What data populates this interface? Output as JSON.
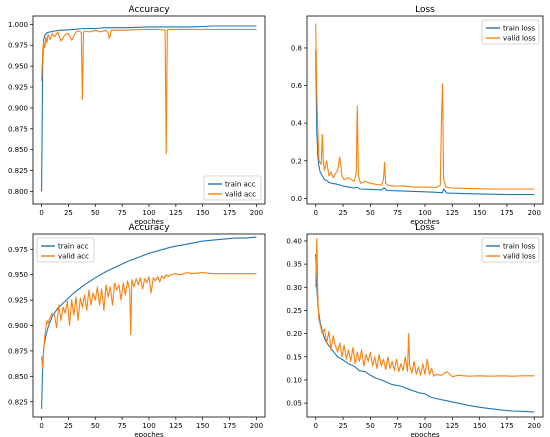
{
  "colors": {
    "train": "#1f77b4",
    "valid": "#ff7f0e"
  },
  "chart_data": [
    {
      "type": "line",
      "title": "Accuracy",
      "xlabel": "epoches",
      "ylabel": "",
      "xlim": [
        -8,
        208
      ],
      "ylim": [
        0.785,
        1.01
      ],
      "grid": false,
      "legend": "bottom-right",
      "xticks": [
        0,
        25,
        50,
        75,
        100,
        125,
        150,
        175,
        200
      ],
      "yticks": [
        0.8,
        0.825,
        0.85,
        0.875,
        0.9,
        0.925,
        0.95,
        0.975,
        1.0
      ],
      "ytick_labels": [
        "0.800",
        "0.825",
        "0.850",
        "0.875",
        "0.900",
        "0.925",
        "0.950",
        "0.975",
        "1.000"
      ],
      "series": [
        {
          "name": "train acc",
          "color": "#1f77b4",
          "x": [
            0,
            1,
            2,
            3,
            5,
            8,
            12,
            17,
            20,
            30,
            40,
            50,
            60,
            70,
            80,
            100,
            120,
            140,
            160,
            180,
            200
          ],
          "values": [
            0.8,
            0.955,
            0.982,
            0.987,
            0.99,
            0.991,
            0.992,
            0.993,
            0.993,
            0.994,
            0.995,
            0.995,
            0.996,
            0.996,
            0.996,
            0.997,
            0.997,
            0.997,
            0.998,
            0.998,
            0.998
          ]
        },
        {
          "name": "valid acc",
          "color": "#ff7f0e",
          "x": [
            0,
            1,
            2,
            3,
            4,
            5,
            6,
            8,
            10,
            12,
            15,
            18,
            22,
            25,
            28,
            32,
            35,
            37,
            38,
            39,
            40,
            45,
            50,
            55,
            60,
            62,
            63,
            65,
            70,
            80,
            90,
            100,
            110,
            115,
            116,
            117,
            118,
            120,
            140,
            160,
            180,
            200
          ],
          "values": [
            0.932,
            0.968,
            0.979,
            0.972,
            0.985,
            0.978,
            0.988,
            0.982,
            0.989,
            0.985,
            0.991,
            0.98,
            0.988,
            0.989,
            0.981,
            0.991,
            0.992,
            0.99,
            0.91,
            0.99,
            0.992,
            0.991,
            0.993,
            0.991,
            0.993,
            0.99,
            0.983,
            0.993,
            0.993,
            0.993,
            0.994,
            0.994,
            0.994,
            0.993,
            0.845,
            0.993,
            0.994,
            0.994,
            0.994,
            0.994,
            0.994,
            0.994
          ]
        }
      ]
    },
    {
      "type": "line",
      "title": "Loss",
      "xlabel": "epoches",
      "ylabel": "",
      "xlim": [
        -8,
        208
      ],
      "ylim": [
        -0.03,
        0.97
      ],
      "grid": false,
      "legend": "top-right",
      "xticks": [
        0,
        25,
        50,
        75,
        100,
        125,
        150,
        175,
        200
      ],
      "yticks": [
        0.0,
        0.2,
        0.4,
        0.6,
        0.8
      ],
      "ytick_labels": [
        "0.0",
        "0.2",
        "0.4",
        "0.6",
        "0.8"
      ],
      "series": [
        {
          "name": "train loss",
          "color": "#1f77b4",
          "x": [
            0,
            1,
            2,
            3,
            4,
            6,
            8,
            10,
            12,
            15,
            20,
            25,
            30,
            35,
            38,
            40,
            50,
            60,
            63,
            65,
            75,
            90,
            100,
            110,
            116,
            117,
            120,
            140,
            160,
            180,
            200
          ],
          "values": [
            0.79,
            0.35,
            0.22,
            0.17,
            0.14,
            0.12,
            0.1,
            0.095,
            0.085,
            0.08,
            0.075,
            0.065,
            0.06,
            0.055,
            0.06,
            0.05,
            0.048,
            0.045,
            0.055,
            0.042,
            0.04,
            0.037,
            0.035,
            0.032,
            0.03,
            0.05,
            0.028,
            0.025,
            0.022,
            0.02,
            0.02
          ]
        },
        {
          "name": "valid loss",
          "color": "#ff7f0e",
          "x": [
            0,
            1,
            2,
            3,
            5,
            6,
            7,
            8,
            10,
            12,
            14,
            16,
            18,
            20,
            22,
            24,
            26,
            30,
            35,
            37,
            38,
            39,
            41,
            45,
            50,
            55,
            60,
            62,
            63,
            64,
            66,
            70,
            80,
            90,
            100,
            110,
            114,
            115,
            116,
            117,
            119,
            125,
            140,
            160,
            180,
            200
          ],
          "values": [
            0.93,
            0.55,
            0.35,
            0.2,
            0.18,
            0.34,
            0.19,
            0.15,
            0.2,
            0.12,
            0.14,
            0.11,
            0.13,
            0.15,
            0.22,
            0.12,
            0.1,
            0.11,
            0.09,
            0.13,
            0.49,
            0.12,
            0.08,
            0.09,
            0.08,
            0.075,
            0.07,
            0.1,
            0.19,
            0.08,
            0.07,
            0.065,
            0.065,
            0.06,
            0.06,
            0.058,
            0.07,
            0.4,
            0.61,
            0.1,
            0.06,
            0.055,
            0.052,
            0.05,
            0.05,
            0.05
          ]
        }
      ]
    },
    {
      "type": "line",
      "title": "Accuracy",
      "xlabel": "epoches",
      "ylabel": "",
      "xlim": [
        -8,
        208
      ],
      "ylim": [
        0.81,
        0.99
      ],
      "grid": false,
      "legend": "top-left",
      "xticks": [
        0,
        25,
        50,
        75,
        100,
        125,
        150,
        175,
        200
      ],
      "yticks": [
        0.825,
        0.85,
        0.875,
        0.9,
        0.925,
        0.95,
        0.975
      ],
      "ytick_labels": [
        "0.825",
        "0.850",
        "0.875",
        "0.900",
        "0.925",
        "0.950",
        "0.975"
      ],
      "series": [
        {
          "name": "train acc",
          "color": "#1f77b4",
          "x": [
            0,
            1,
            2,
            4,
            6,
            8,
            10,
            15,
            20,
            25,
            30,
            40,
            50,
            60,
            70,
            80,
            90,
            100,
            110,
            120,
            130,
            140,
            150,
            160,
            170,
            180,
            190,
            200
          ],
          "values": [
            0.818,
            0.86,
            0.878,
            0.89,
            0.898,
            0.904,
            0.909,
            0.917,
            0.922,
            0.927,
            0.932,
            0.94,
            0.947,
            0.953,
            0.958,
            0.963,
            0.967,
            0.971,
            0.974,
            0.977,
            0.979,
            0.981,
            0.983,
            0.984,
            0.985,
            0.986,
            0.986,
            0.987
          ]
        },
        {
          "name": "valid acc",
          "color": "#ff7f0e",
          "x": [
            0,
            1,
            2,
            3,
            4,
            5,
            6,
            8,
            10,
            12,
            14,
            16,
            18,
            20,
            22,
            24,
            26,
            28,
            30,
            32,
            34,
            36,
            38,
            40,
            42,
            44,
            46,
            48,
            50,
            52,
            54,
            56,
            58,
            60,
            62,
            64,
            66,
            68,
            70,
            72,
            74,
            76,
            78,
            80,
            82,
            83,
            84,
            86,
            88,
            90,
            92,
            94,
            96,
            98,
            100,
            102,
            104,
            106,
            108,
            110,
            112,
            114,
            116,
            118,
            120,
            125,
            130,
            135,
            140,
            150,
            160,
            170,
            180,
            190,
            200
          ],
          "values": [
            0.87,
            0.858,
            0.875,
            0.89,
            0.898,
            0.905,
            0.902,
            0.908,
            0.912,
            0.91,
            0.898,
            0.92,
            0.905,
            0.918,
            0.912,
            0.924,
            0.9,
            0.925,
            0.91,
            0.928,
            0.905,
            0.927,
            0.918,
            0.93,
            0.915,
            0.935,
            0.92,
            0.932,
            0.925,
            0.938,
            0.92,
            0.936,
            0.915,
            0.94,
            0.928,
            0.938,
            0.92,
            0.942,
            0.935,
            0.94,
            0.925,
            0.942,
            0.93,
            0.944,
            0.935,
            0.891,
            0.945,
            0.938,
            0.946,
            0.94,
            0.947,
            0.936,
            0.946,
            0.942,
            0.948,
            0.932,
            0.947,
            0.944,
            0.948,
            0.943,
            0.949,
            0.946,
            0.95,
            0.948,
            0.95,
            0.951,
            0.95,
            0.952,
            0.951,
            0.952,
            0.951,
            0.951,
            0.951,
            0.951,
            0.951
          ]
        }
      ]
    },
    {
      "type": "line",
      "title": "Loss",
      "xlabel": "epoches",
      "ylabel": "",
      "xlim": [
        -8,
        208
      ],
      "ylim": [
        0.02,
        0.415
      ],
      "grid": false,
      "legend": "top-right",
      "xticks": [
        0,
        25,
        50,
        75,
        100,
        125,
        150,
        175,
        200
      ],
      "yticks": [
        0.05,
        0.1,
        0.15,
        0.2,
        0.25,
        0.3,
        0.35,
        0.4
      ],
      "ytick_labels": [
        "0.05",
        "0.10",
        "0.15",
        "0.20",
        "0.25",
        "0.30",
        "0.35",
        "0.40"
      ],
      "series": [
        {
          "name": "train loss",
          "color": "#1f77b4",
          "x": [
            0,
            1,
            2,
            4,
            6,
            8,
            10,
            15,
            20,
            25,
            30,
            35,
            40,
            45,
            50,
            55,
            60,
            65,
            70,
            75,
            80,
            85,
            90,
            95,
            100,
            105,
            110,
            120,
            130,
            140,
            150,
            160,
            170,
            180,
            190,
            200
          ],
          "values": [
            0.372,
            0.3,
            0.26,
            0.225,
            0.205,
            0.19,
            0.18,
            0.165,
            0.15,
            0.143,
            0.135,
            0.13,
            0.12,
            0.118,
            0.11,
            0.104,
            0.1,
            0.095,
            0.09,
            0.088,
            0.085,
            0.08,
            0.076,
            0.072,
            0.07,
            0.063,
            0.06,
            0.055,
            0.05,
            0.045,
            0.041,
            0.038,
            0.035,
            0.033,
            0.032,
            0.031
          ]
        },
        {
          "name": "valid loss",
          "color": "#ff7f0e",
          "x": [
            0,
            1,
            2,
            3,
            4,
            6,
            8,
            10,
            12,
            14,
            16,
            18,
            20,
            22,
            24,
            26,
            28,
            30,
            32,
            34,
            36,
            38,
            40,
            42,
            44,
            46,
            48,
            50,
            52,
            54,
            56,
            58,
            60,
            62,
            64,
            66,
            68,
            70,
            72,
            74,
            76,
            78,
            80,
            82,
            84,
            85,
            86,
            88,
            90,
            92,
            94,
            96,
            98,
            100,
            102,
            104,
            106,
            108,
            110,
            115,
            120,
            125,
            130,
            140,
            150,
            160,
            170,
            180,
            190,
            200
          ],
          "values": [
            0.3,
            0.405,
            0.27,
            0.23,
            0.22,
            0.2,
            0.21,
            0.18,
            0.205,
            0.165,
            0.195,
            0.175,
            0.16,
            0.18,
            0.15,
            0.175,
            0.145,
            0.165,
            0.14,
            0.17,
            0.135,
            0.16,
            0.14,
            0.165,
            0.13,
            0.155,
            0.14,
            0.16,
            0.13,
            0.15,
            0.125,
            0.155,
            0.13,
            0.145,
            0.122,
            0.15,
            0.125,
            0.14,
            0.12,
            0.145,
            0.118,
            0.135,
            0.12,
            0.15,
            0.118,
            0.2,
            0.13,
            0.115,
            0.14,
            0.112,
            0.128,
            0.11,
            0.135,
            0.112,
            0.145,
            0.112,
            0.125,
            0.108,
            0.112,
            0.11,
            0.118,
            0.107,
            0.11,
            0.108,
            0.109,
            0.108,
            0.109,
            0.108,
            0.109,
            0.109
          ]
        }
      ]
    }
  ]
}
